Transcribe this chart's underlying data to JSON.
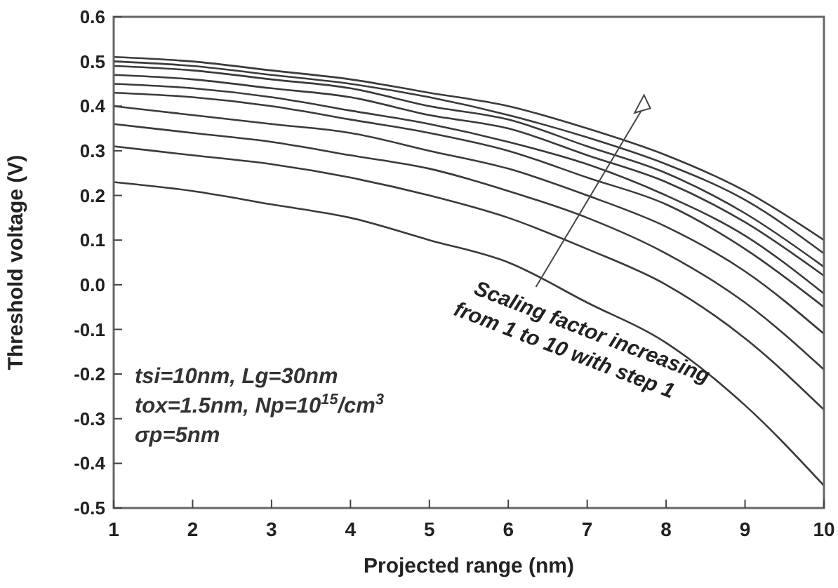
{
  "chart_data": {
    "type": "line",
    "xlabel": "Projected range (nm)",
    "ylabel": "Threshold voltage (V)",
    "x": [
      1,
      2,
      3,
      4,
      5,
      6,
      7,
      8,
      9,
      10
    ],
    "series": [
      {
        "color": "#3a3a3a",
        "values": [
          0.23,
          0.21,
          0.18,
          0.15,
          0.1,
          0.05,
          -0.04,
          -0.13,
          -0.27,
          -0.45
        ]
      },
      {
        "color": "#3a3a3a",
        "values": [
          0.31,
          0.29,
          0.27,
          0.24,
          0.2,
          0.15,
          0.08,
          0.0,
          -0.12,
          -0.28
        ]
      },
      {
        "color": "#3a3a3a",
        "values": [
          0.36,
          0.34,
          0.32,
          0.29,
          0.26,
          0.21,
          0.15,
          0.07,
          -0.04,
          -0.19
        ]
      },
      {
        "color": "#3a3a3a",
        "values": [
          0.4,
          0.38,
          0.36,
          0.34,
          0.3,
          0.26,
          0.2,
          0.13,
          0.03,
          -0.11
        ]
      },
      {
        "color": "#3a3a3a",
        "values": [
          0.43,
          0.42,
          0.4,
          0.37,
          0.34,
          0.3,
          0.24,
          0.18,
          0.08,
          -0.05
        ]
      },
      {
        "color": "#3a3a3a",
        "values": [
          0.45,
          0.44,
          0.42,
          0.39,
          0.36,
          0.32,
          0.27,
          0.2,
          0.11,
          -0.02
        ]
      },
      {
        "color": "#3a3a3a",
        "values": [
          0.47,
          0.46,
          0.44,
          0.42,
          0.38,
          0.35,
          0.29,
          0.23,
          0.14,
          0.02
        ]
      },
      {
        "color": "#3a3a3a",
        "values": [
          0.49,
          0.48,
          0.46,
          0.44,
          0.4,
          0.37,
          0.31,
          0.25,
          0.16,
          0.04
        ]
      },
      {
        "color": "#3a3a3a",
        "values": [
          0.5,
          0.49,
          0.47,
          0.45,
          0.42,
          0.38,
          0.33,
          0.27,
          0.19,
          0.07
        ]
      },
      {
        "color": "#3a3a3a",
        "values": [
          0.51,
          0.5,
          0.48,
          0.46,
          0.43,
          0.4,
          0.35,
          0.29,
          0.21,
          0.1
        ]
      }
    ],
    "xlim": [
      1,
      10
    ],
    "xticks": [
      1,
      2,
      3,
      4,
      5,
      6,
      7,
      8,
      9,
      10
    ],
    "ylim": [
      -0.5,
      0.6
    ],
    "yticks": [
      {
        "value": -0.5,
        "label": "-0.5"
      },
      {
        "value": -0.4,
        "label": "-0.4"
      },
      {
        "value": -0.3,
        "label": "-0.3"
      },
      {
        "value": -0.2,
        "label": "-0.2"
      },
      {
        "value": -0.1,
        "label": "-0.1"
      },
      {
        "value": 0,
        "label": "0.0"
      },
      {
        "value": 0.1,
        "label": "0.1"
      },
      {
        "value": 0.2,
        "label": "0.2"
      },
      {
        "value": 0.3,
        "label": "0.3"
      },
      {
        "value": 0.4,
        "label": "0.4"
      },
      {
        "value": 0.5,
        "label": "0.5"
      },
      {
        "value": 0.6,
        "label": "0.6"
      }
    ],
    "grid": false,
    "marker": "none",
    "line_style": "solid",
    "annotations": [
      "Scaling factor increasing",
      "from 1 to 10 with step 1",
      "tsi=10nm, Lg=30nm",
      "tox=1.5nm, Np=10$^{15}$/cm$^{3}$",
      "σp=5nm"
    ]
  }
}
